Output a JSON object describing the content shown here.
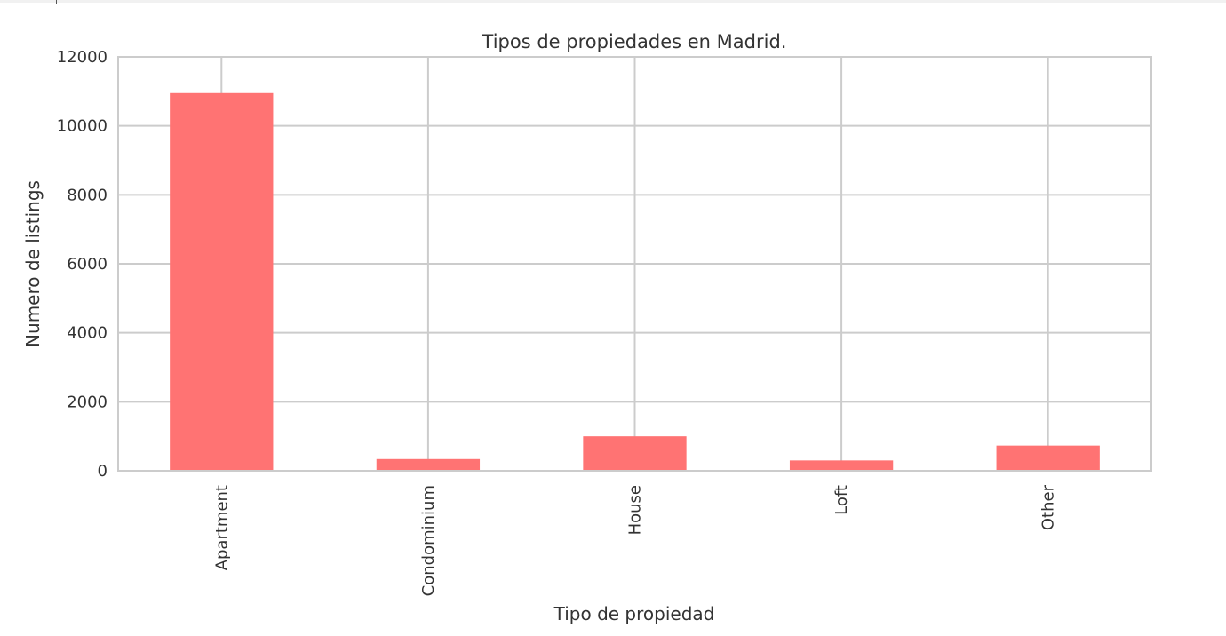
{
  "chart_data": {
    "type": "bar",
    "title": "Tipos de propiedades en Madrid.",
    "xlabel": "Tipo de propiedad",
    "ylabel": "Numero de listings",
    "categories": [
      "Apartment",
      "Condominium",
      "House",
      "Loft",
      "Other"
    ],
    "values": [
      10950,
      340,
      1000,
      300,
      730
    ],
    "ylim": [
      0,
      12000
    ],
    "yticks": [
      "0",
      "2000",
      "4000",
      "6000",
      "8000",
      "10000",
      "12000"
    ],
    "grid": true,
    "bar_color": "#ff7373",
    "grid_color": "#cccccc"
  }
}
